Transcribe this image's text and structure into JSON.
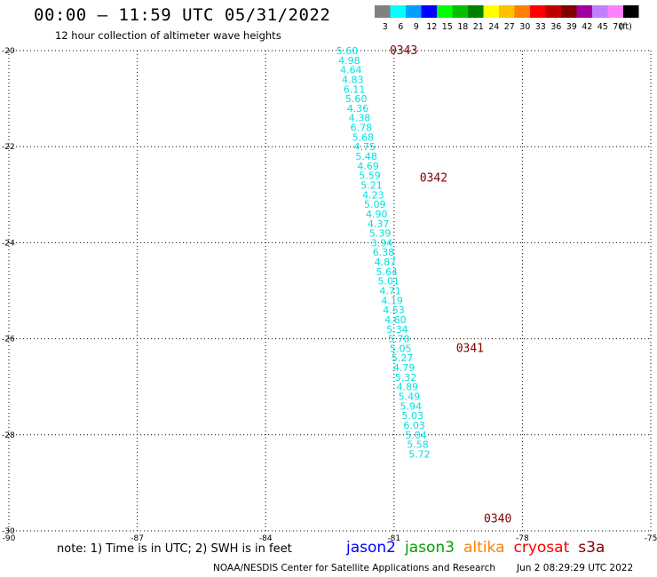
{
  "header": {
    "title": "00:00 – 11:59 UTC 05/31/2022",
    "subtitle": "12 hour collection of altimeter wave heights"
  },
  "legend": {
    "unit": "(ft)",
    "bins": [
      {
        "label": "3",
        "color": "#808080"
      },
      {
        "label": "6",
        "color": "#00ffff"
      },
      {
        "label": "9",
        "color": "#00a0ff"
      },
      {
        "label": "12",
        "color": "#0000ff"
      },
      {
        "label": "15",
        "color": "#00ff00"
      },
      {
        "label": "18",
        "color": "#00c000"
      },
      {
        "label": "21",
        "color": "#008000"
      },
      {
        "label": "24",
        "color": "#ffff00"
      },
      {
        "label": "27",
        "color": "#ffc000"
      },
      {
        "label": "30",
        "color": "#ff8000"
      },
      {
        "label": "33",
        "color": "#ff0000"
      },
      {
        "label": "36",
        "color": "#c00000"
      },
      {
        "label": "39",
        "color": "#800000"
      },
      {
        "label": "42",
        "color": "#a000a0"
      },
      {
        "label": "45",
        "color": "#c080ff"
      },
      {
        "label": "70",
        "color": "#ff80ff"
      },
      {
        "label": "",
        "color": "#000000"
      }
    ]
  },
  "chart_data": {
    "type": "scatter",
    "title": "00:00 – 11:59 UTC 05/31/2022",
    "subtitle": "12 hour collection of altimeter wave heights",
    "xlim": [
      -90,
      -75
    ],
    "ylim": [
      -30,
      -20
    ],
    "grid": true,
    "x_ticks": [
      {
        "value": -90,
        "label": "-90"
      },
      {
        "value": -87,
        "label": "-87"
      },
      {
        "value": -84,
        "label": "-84"
      },
      {
        "value": -81,
        "label": "-81"
      },
      {
        "value": -78,
        "label": "-78"
      },
      {
        "value": -75,
        "label": "-75"
      }
    ],
    "y_ticks": [
      {
        "value": -20,
        "label": "-20"
      },
      {
        "value": -22,
        "label": "-22"
      },
      {
        "value": -24,
        "label": "-24"
      },
      {
        "value": -26,
        "label": "-26"
      },
      {
        "value": -28,
        "label": "-28"
      },
      {
        "value": -30,
        "label": "-30"
      }
    ],
    "track_color": "#00e0e0",
    "time_color": "#800000",
    "points": [
      {
        "lon": -82.35,
        "lat": -20.0,
        "swh": "5.60"
      },
      {
        "lon": -82.3,
        "lat": -20.2,
        "swh": "4.98"
      },
      {
        "lon": -82.26,
        "lat": -20.4,
        "swh": "4.64"
      },
      {
        "lon": -82.22,
        "lat": -20.6,
        "swh": "4.83"
      },
      {
        "lon": -82.18,
        "lat": -20.8,
        "swh": "6.11"
      },
      {
        "lon": -82.14,
        "lat": -21.0,
        "swh": "5.60"
      },
      {
        "lon": -82.1,
        "lat": -21.2,
        "swh": "4.36"
      },
      {
        "lon": -82.06,
        "lat": -21.4,
        "swh": "4.38"
      },
      {
        "lon": -82.02,
        "lat": -21.6,
        "swh": "6.78"
      },
      {
        "lon": -81.98,
        "lat": -21.8,
        "swh": "5.68"
      },
      {
        "lon": -81.94,
        "lat": -22.0,
        "swh": "4.75"
      },
      {
        "lon": -81.9,
        "lat": -22.2,
        "swh": "5.48"
      },
      {
        "lon": -81.86,
        "lat": -22.4,
        "swh": "4.69"
      },
      {
        "lon": -81.82,
        "lat": -22.6,
        "swh": "5.59"
      },
      {
        "lon": -81.78,
        "lat": -22.8,
        "swh": "5.21"
      },
      {
        "lon": -81.74,
        "lat": -23.0,
        "swh": "4.23"
      },
      {
        "lon": -81.7,
        "lat": -23.2,
        "swh": "5.09"
      },
      {
        "lon": -81.66,
        "lat": -23.4,
        "swh": "4.90"
      },
      {
        "lon": -81.62,
        "lat": -23.6,
        "swh": "4.37"
      },
      {
        "lon": -81.58,
        "lat": -23.8,
        "swh": "5.39"
      },
      {
        "lon": -81.54,
        "lat": -24.0,
        "swh": "3.94"
      },
      {
        "lon": -81.5,
        "lat": -24.2,
        "swh": "6.38"
      },
      {
        "lon": -81.46,
        "lat": -24.4,
        "swh": "4.87"
      },
      {
        "lon": -81.42,
        "lat": -24.6,
        "swh": "5.64"
      },
      {
        "lon": -81.38,
        "lat": -24.8,
        "swh": "5.01"
      },
      {
        "lon": -81.34,
        "lat": -25.0,
        "swh": "4.71"
      },
      {
        "lon": -81.3,
        "lat": -25.2,
        "swh": "4.19"
      },
      {
        "lon": -81.26,
        "lat": -25.4,
        "swh": "4.53"
      },
      {
        "lon": -81.22,
        "lat": -25.6,
        "swh": "4.60"
      },
      {
        "lon": -81.18,
        "lat": -25.8,
        "swh": "5.34"
      },
      {
        "lon": -81.14,
        "lat": -26.0,
        "swh": "5.70"
      },
      {
        "lon": -81.1,
        "lat": -26.2,
        "swh": "5.05"
      },
      {
        "lon": -81.06,
        "lat": -26.4,
        "swh": "5.27"
      },
      {
        "lon": -81.02,
        "lat": -26.6,
        "swh": "4.79"
      },
      {
        "lon": -80.98,
        "lat": -26.8,
        "swh": "5.32"
      },
      {
        "lon": -80.94,
        "lat": -27.0,
        "swh": "4.89"
      },
      {
        "lon": -80.9,
        "lat": -27.2,
        "swh": "5.49"
      },
      {
        "lon": -80.86,
        "lat": -27.4,
        "swh": "5.94"
      },
      {
        "lon": -80.82,
        "lat": -27.6,
        "swh": "5.03"
      },
      {
        "lon": -80.78,
        "lat": -27.8,
        "swh": "6.03"
      },
      {
        "lon": -80.74,
        "lat": -28.0,
        "swh": "5.04"
      },
      {
        "lon": -80.7,
        "lat": -28.2,
        "swh": "5.58"
      },
      {
        "lon": -80.66,
        "lat": -28.4,
        "swh": "5.72"
      }
    ],
    "time_labels": [
      {
        "lon": -81.1,
        "lat": -20.0,
        "label": "0343"
      },
      {
        "lon": -80.4,
        "lat": -22.65,
        "label": "0342"
      },
      {
        "lon": -79.55,
        "lat": -26.2,
        "label": "0341"
      },
      {
        "lon": -78.9,
        "lat": -29.75,
        "label": "0340"
      }
    ]
  },
  "note": {
    "text": "note: 1) Time is in UTC; 2) SWH is in feet"
  },
  "satellites": [
    {
      "name": "jason2",
      "color": "#0000ff"
    },
    {
      "name": "jason3",
      "color": "#00a000"
    },
    {
      "name": "altika",
      "color": "#ff8000"
    },
    {
      "name": "cryosat",
      "color": "#ff0000"
    },
    {
      "name": "s3a",
      "color": "#800000"
    }
  ],
  "footer": {
    "credit": "NOAA/NESDIS Center for Satellite Applications and Research",
    "timestamp": "Jun  2 08:29:29 UTC 2022"
  }
}
